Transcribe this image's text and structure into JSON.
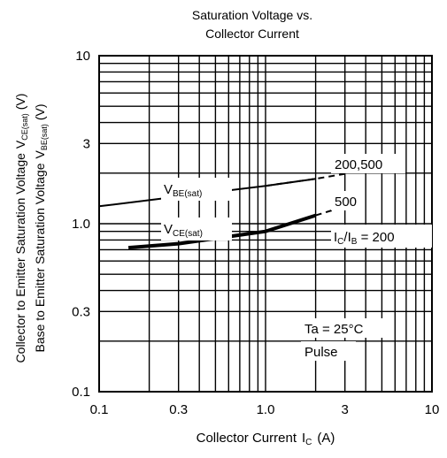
{
  "chart_data": {
    "type": "line",
    "title_lines": [
      "Saturation Voltage vs.",
      "Collector Current"
    ],
    "xlabel_main": "Collector Current",
    "xlabel_symbol": "I",
    "xlabel_sub": "C",
    "xlabel_unit": "(A)",
    "ylabel_line1": {
      "text": "Collector to Emitter Saturation Voltage",
      "sym": "V",
      "sub": "CE(sat)",
      "unit": "(V)"
    },
    "ylabel_line2": {
      "text": "Base to Emitter Saturation Voltage",
      "sym": "V",
      "sub": "BE(sat)",
      "unit": "(V)"
    },
    "x_scale": "log",
    "y_scale": "log",
    "xlim": [
      0.1,
      10
    ],
    "ylim": [
      0.1,
      10
    ],
    "x_ticks": [
      0.1,
      0.3,
      1.0,
      3,
      10
    ],
    "x_tick_labels": [
      "0.1",
      "0.3",
      "1.0",
      "3",
      "10"
    ],
    "y_ticks": [
      0.1,
      0.3,
      1.0,
      3,
      10
    ],
    "y_tick_labels": [
      "0.1",
      "0.3",
      "1.0",
      "3",
      "10"
    ],
    "grid": true,
    "series": [
      {
        "name": "VBE(sat)",
        "sym": "V",
        "sub": "BE(sat)",
        "line": "solid",
        "x": [
          0.1,
          0.3,
          1.0,
          2.0
        ],
        "y": [
          1.27,
          1.45,
          1.68,
          1.85
        ]
      },
      {
        "name": "VBE(sat)",
        "sym": "V",
        "sub": "BE(sat)",
        "line": "dashed",
        "x": [
          1.0,
          2.0,
          3.0
        ],
        "y": [
          1.68,
          1.85,
          1.98
        ]
      },
      {
        "name": "VCE(sat)",
        "sym": "V",
        "sub": "CE(sat)",
        "line": "solid",
        "bold": true,
        "x": [
          0.15,
          0.3,
          1.0,
          2.0
        ],
        "y": [
          0.72,
          0.76,
          0.9,
          1.12
        ]
      },
      {
        "name": "VCE(sat)",
        "sym": "V",
        "sub": "CE(sat)",
        "line": "dashed",
        "x": [
          2.0,
          2.5,
          3.0
        ],
        "y": [
          1.12,
          1.2,
          1.28
        ]
      }
    ],
    "annotations": [
      {
        "text": "200,500"
      },
      {
        "text": "500"
      },
      {
        "sym": "I",
        "sub1": "C",
        "sep": "/I",
        "sub2": "B",
        "rest": " = 200"
      },
      {
        "text": "Ta = 25°C"
      },
      {
        "text": "Pulse"
      }
    ]
  }
}
